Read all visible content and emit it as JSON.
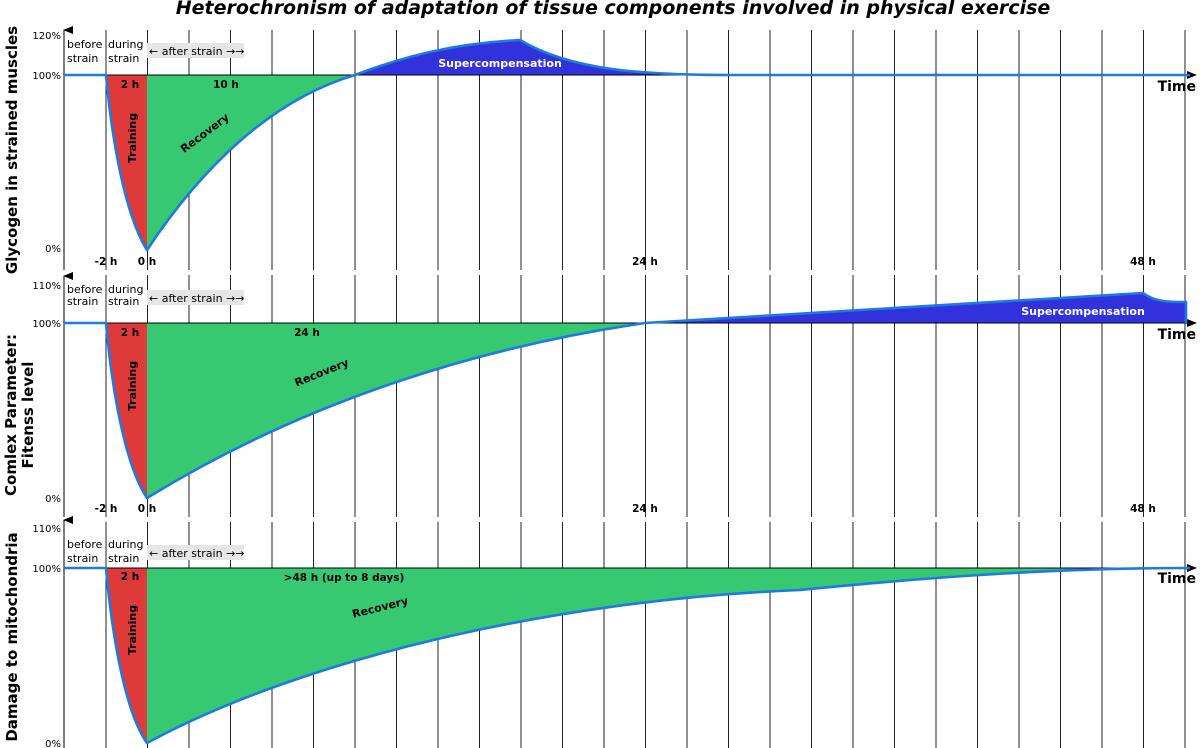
{
  "title": "Heterochronism of adaptation of tissue components involved in physical exercise",
  "panels": [
    {
      "y_label_lines": [
        "Glycogen in strained muscles"
      ],
      "y_ticks": [
        "120%",
        "100%",
        "0%"
      ],
      "phase_before": [
        "before",
        "strain"
      ],
      "phase_during": [
        "during",
        "strain"
      ],
      "after_strain": "← after strain →→",
      "training_duration": "2 h",
      "training_label": "Training",
      "recovery_duration": "10 h",
      "recovery_label": "Recovery",
      "supercompensation_label": "Supercompensation",
      "time_label": "Time",
      "x_ticks": [
        "-2 h",
        "0 h",
        "24 h",
        "48 h"
      ]
    },
    {
      "y_label_lines": [
        "Comlex Parameter:",
        "Fitenss level"
      ],
      "y_ticks": [
        "110%",
        "100%",
        "0%"
      ],
      "phase_before": [
        "before",
        "strain"
      ],
      "phase_during": [
        "during",
        "strain"
      ],
      "after_strain": "← after strain →→",
      "training_duration": "2 h",
      "training_label": "Training",
      "recovery_duration": "24 h",
      "recovery_label": "Recovery",
      "supercompensation_label": "Supercompensation",
      "time_label": "Time",
      "x_ticks": [
        "-2 h",
        "0 h",
        "24 h",
        "48 h"
      ]
    },
    {
      "y_label_lines": [
        "Damage to mitochondria"
      ],
      "y_ticks": [
        "110%",
        "100%",
        "0%"
      ],
      "phase_before": [
        "before",
        "strain"
      ],
      "phase_during": [
        "during",
        "strain"
      ],
      "after_strain": "← after strain →→",
      "training_duration": "2 h",
      "training_label": "Training",
      "recovery_duration": ">48 h (up to 8 days)",
      "recovery_label": "Recovery",
      "supercompensation_label": "",
      "time_label": "Time",
      "x_ticks": []
    }
  ],
  "colors": {
    "training": "#de3a3a",
    "recovery": "#36c971",
    "supercompensation": "#3232dc",
    "curve": "#1f7ae0"
  }
}
